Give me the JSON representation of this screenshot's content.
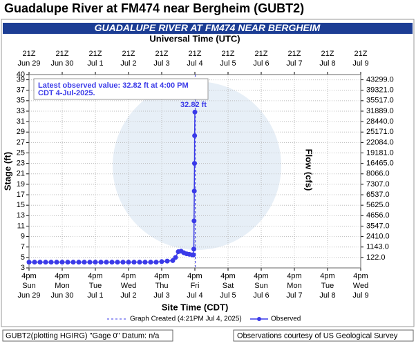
{
  "chart_data": {
    "type": "line",
    "title": "Guadalupe River at FM474 near Bergheim (GUBT2)",
    "banner": "GUADALUPE RIVER AT FM474 NEAR BERGHEIM",
    "x2label": "Universal Time (UTC)",
    "xlabel": "Site Time (CDT)",
    "ylabel": "Stage (ft)",
    "y2label": "Flow (cfs)",
    "annotation": [
      "Latest observed value: 32.82 ft at 4:00 PM",
      "CDT 4-Jul-2025."
    ],
    "created_label": "Graph Created (4:21PM Jul 4, 2025)",
    "created_time": "2025-07-04T16:21",
    "footer": [
      "GUBT2(plotting HGIRG) \"Gage 0\" Datum: n/a",
      "Observations courtesy of US Geological Survey"
    ],
    "grid": true,
    "xlim": [
      "2025-06-29T16:00",
      "2025-07-09T16:00"
    ],
    "ylim": [
      3,
      40
    ],
    "yticks": [
      3,
      5,
      7,
      9,
      11,
      13,
      15,
      17,
      19,
      21,
      23,
      25,
      27,
      29,
      31,
      33,
      35,
      37,
      39,
      40
    ],
    "y2ticks": [
      {
        "value": 122,
        "label": "122.0"
      },
      {
        "value": 1143,
        "label": "1143.0"
      },
      {
        "value": 2410,
        "label": "2410.0"
      },
      {
        "value": 3547,
        "label": "3547.0"
      },
      {
        "value": 4656,
        "label": "4656.0"
      },
      {
        "value": 5625,
        "label": "5625.0"
      },
      {
        "value": 6537,
        "label": "6537.0"
      },
      {
        "value": 7307,
        "label": "7307.0"
      },
      {
        "value": 8066,
        "label": "8066.0"
      },
      {
        "value": 16465,
        "label": "16465.0"
      },
      {
        "value": 19181,
        "label": "19181.0"
      },
      {
        "value": 22084,
        "label": "22084.0"
      },
      {
        "value": 25171,
        "label": "25171.0"
      },
      {
        "value": 28440,
        "label": "28440.0"
      },
      {
        "value": 31889,
        "label": "31889.0"
      },
      {
        "value": 35517,
        "label": "35517.0"
      },
      {
        "value": 39321,
        "label": "39321.0"
      },
      {
        "value": 43299,
        "label": "43299.0"
      }
    ],
    "y2tick_stage": [
      5,
      7,
      9,
      11,
      13,
      15,
      17,
      19,
      21,
      23,
      25,
      27,
      29,
      31,
      33,
      35,
      37,
      39
    ],
    "xticks": [
      {
        "value": "2025-06-29T16:00",
        "label": [
          "4pm",
          "Sun",
          "Jun 29"
        ]
      },
      {
        "value": "2025-06-30T16:00",
        "label": [
          "4pm",
          "Mon",
          "Jun 30"
        ]
      },
      {
        "value": "2025-07-01T16:00",
        "label": [
          "4pm",
          "Tue",
          "Jul 1"
        ]
      },
      {
        "value": "2025-07-02T16:00",
        "label": [
          "4pm",
          "Wed",
          "Jul 2"
        ]
      },
      {
        "value": "2025-07-03T16:00",
        "label": [
          "4pm",
          "Thu",
          "Jul 3"
        ]
      },
      {
        "value": "2025-07-04T16:00",
        "label": [
          "4pm",
          "Fri",
          "Jul 4"
        ]
      },
      {
        "value": "2025-07-05T16:00",
        "label": [
          "4pm",
          "Sat",
          "Jul 5"
        ]
      },
      {
        "value": "2025-07-06T16:00",
        "label": [
          "4pm",
          "Sun",
          "Jul 6"
        ]
      },
      {
        "value": "2025-07-07T16:00",
        "label": [
          "4pm",
          "Mon",
          "Jul 7"
        ]
      },
      {
        "value": "2025-07-08T16:00",
        "label": [
          "4pm",
          "Tue",
          "Jul 8"
        ]
      },
      {
        "value": "2025-07-09T16:00",
        "label": [
          "4pm",
          "Wed",
          "Jul 9"
        ]
      }
    ],
    "x2ticks": [
      {
        "value": "2025-06-29T16:00",
        "label": [
          "21Z",
          "Jun 29"
        ]
      },
      {
        "value": "2025-06-30T16:00",
        "label": [
          "21Z",
          "Jun 30"
        ]
      },
      {
        "value": "2025-07-01T16:00",
        "label": [
          "21Z",
          "Jul 1"
        ]
      },
      {
        "value": "2025-07-02T16:00",
        "label": [
          "21Z",
          "Jul 2"
        ]
      },
      {
        "value": "2025-07-03T16:00",
        "label": [
          "21Z",
          "Jul 3"
        ]
      },
      {
        "value": "2025-07-04T16:00",
        "label": [
          "21Z",
          "Jul 4"
        ]
      },
      {
        "value": "2025-07-05T16:00",
        "label": [
          "21Z",
          "Jul 5"
        ]
      },
      {
        "value": "2025-07-06T16:00",
        "label": [
          "21Z",
          "Jul 6"
        ]
      },
      {
        "value": "2025-07-07T16:00",
        "label": [
          "21Z",
          "Jul 7"
        ]
      },
      {
        "value": "2025-07-08T16:00",
        "label": [
          "21Z",
          "Jul 8"
        ]
      },
      {
        "value": "2025-07-09T16:00",
        "label": [
          "21Z",
          "Jul 9"
        ]
      }
    ],
    "x": [
      "2025-06-29T16:00",
      "2025-06-29T20:00",
      "2025-06-30T00:00",
      "2025-06-30T04:00",
      "2025-06-30T08:00",
      "2025-06-30T12:00",
      "2025-06-30T16:00",
      "2025-06-30T20:00",
      "2025-07-01T00:00",
      "2025-07-01T04:00",
      "2025-07-01T08:00",
      "2025-07-01T12:00",
      "2025-07-01T16:00",
      "2025-07-01T20:00",
      "2025-07-02T00:00",
      "2025-07-02T04:00",
      "2025-07-02T08:00",
      "2025-07-02T12:00",
      "2025-07-02T16:00",
      "2025-07-02T20:00",
      "2025-07-03T00:00",
      "2025-07-03T04:00",
      "2025-07-03T08:00",
      "2025-07-03T12:00",
      "2025-07-03T16:00",
      "2025-07-03T20:00",
      "2025-07-04T00:00",
      "2025-07-04T02:00",
      "2025-07-04T04:00",
      "2025-07-04T06:00",
      "2025-07-04T08:00",
      "2025-07-04T10:00",
      "2025-07-04T12:00",
      "2025-07-04T14:00",
      "2025-07-04T15:00",
      "2025-07-04T15:15",
      "2025-07-04T15:25",
      "2025-07-04T15:35",
      "2025-07-04T15:45",
      "2025-07-04T15:50",
      "2025-07-04T16:00"
    ],
    "series": [
      {
        "name": "Observed",
        "color": "#3a3ae8",
        "values": [
          4.1,
          4.1,
          4.1,
          4.1,
          4.1,
          4.1,
          4.1,
          4.1,
          4.1,
          4.1,
          4.1,
          4.1,
          4.1,
          4.1,
          4.1,
          4.1,
          4.1,
          4.1,
          4.1,
          4.1,
          4.1,
          4.1,
          4.1,
          4.1,
          4.2,
          4.3,
          4.4,
          5.0,
          6.1,
          6.2,
          5.9,
          5.7,
          5.6,
          5.5,
          5.5,
          6.6,
          12.0,
          17.7,
          23.0,
          28.3,
          32.82
        ],
        "value_labels": [
          null,
          null,
          null,
          null,
          null,
          null,
          null,
          null,
          null,
          null,
          null,
          null,
          null,
          null,
          null,
          null,
          null,
          null,
          null,
          null,
          null,
          null,
          null,
          null,
          null,
          null,
          null,
          null,
          null,
          null,
          null,
          null,
          null,
          null,
          null,
          null,
          null,
          null,
          null,
          null,
          "32.82 ft"
        ]
      }
    ]
  }
}
